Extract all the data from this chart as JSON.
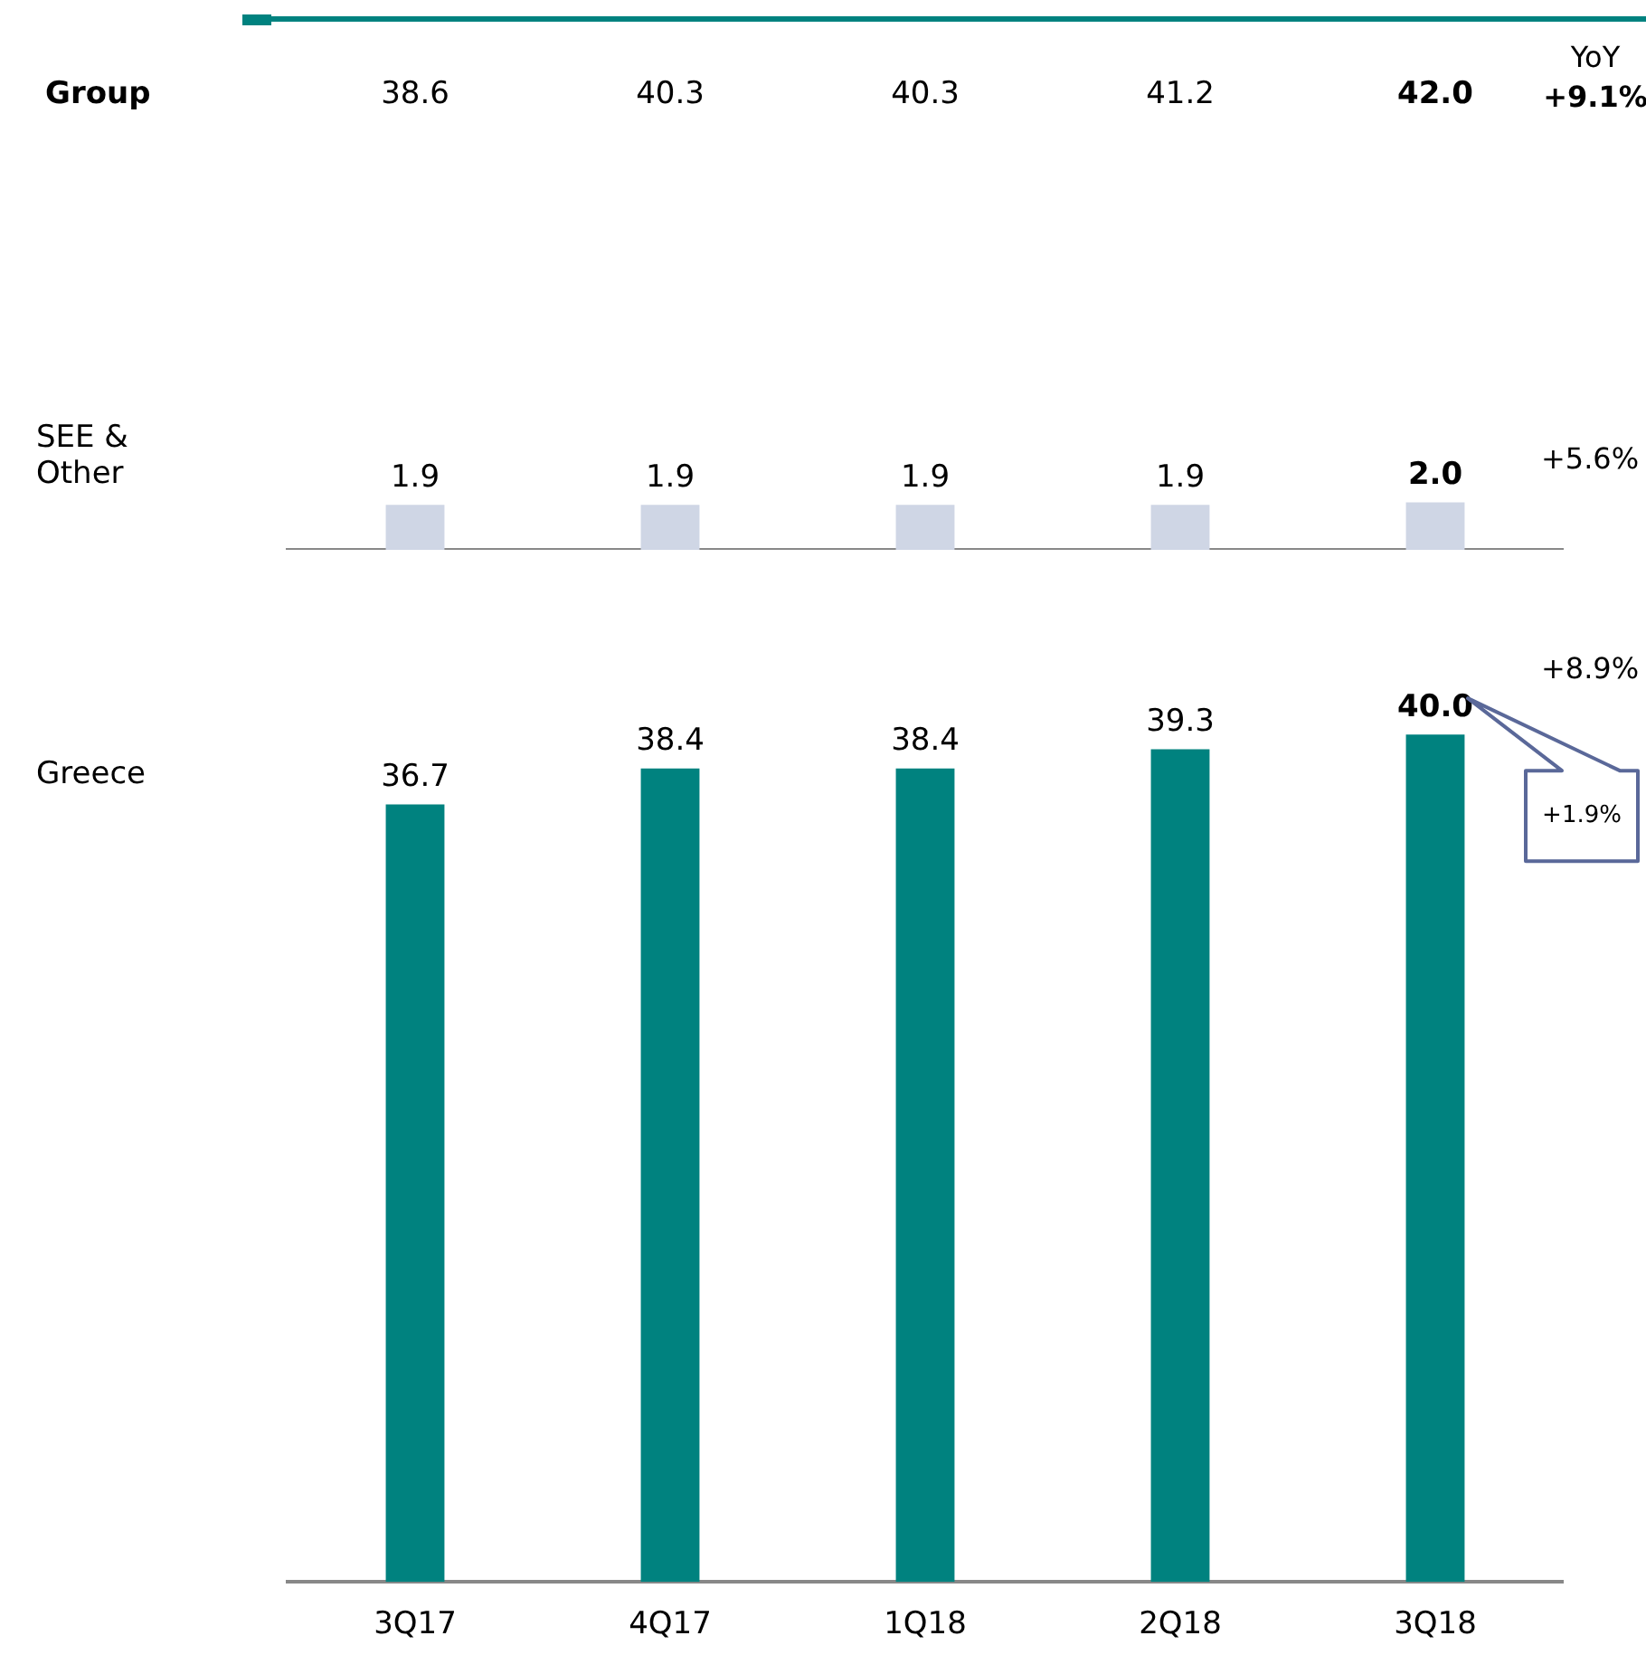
{
  "chart_data": [
    {
      "type": "other",
      "title": "Group",
      "annotations": [
        "38.6",
        "40.3",
        "40.3",
        "41.2",
        "42.0",
        "YoY",
        "+9.1%"
      ]
    },
    {
      "type": "bar",
      "ylabel": "SEE & Other",
      "categories": [
        null,
        null,
        null,
        null,
        null
      ],
      "values": [
        1.9,
        1.9,
        1.9,
        1.9,
        2.0
      ],
      "value_labels": [
        "1.9",
        "1.9",
        "1.9",
        "1.9",
        "2.0"
      ],
      "color": "#cfd6e5",
      "annotations": [
        "+5.6%"
      ]
    },
    {
      "type": "bar",
      "ylabel": "Greece",
      "categories": [
        "3Q17",
        "4Q17",
        "1Q18",
        "2Q18",
        "3Q18"
      ],
      "values": [
        36.7,
        38.4,
        38.4,
        39.3,
        40.0
      ],
      "value_labels": [
        "36.7",
        "38.4",
        "38.4",
        "39.3",
        "40.0"
      ],
      "color": "#00827f",
      "annotations": [
        "+8.9%",
        "+1.9%"
      ]
    }
  ]
}
